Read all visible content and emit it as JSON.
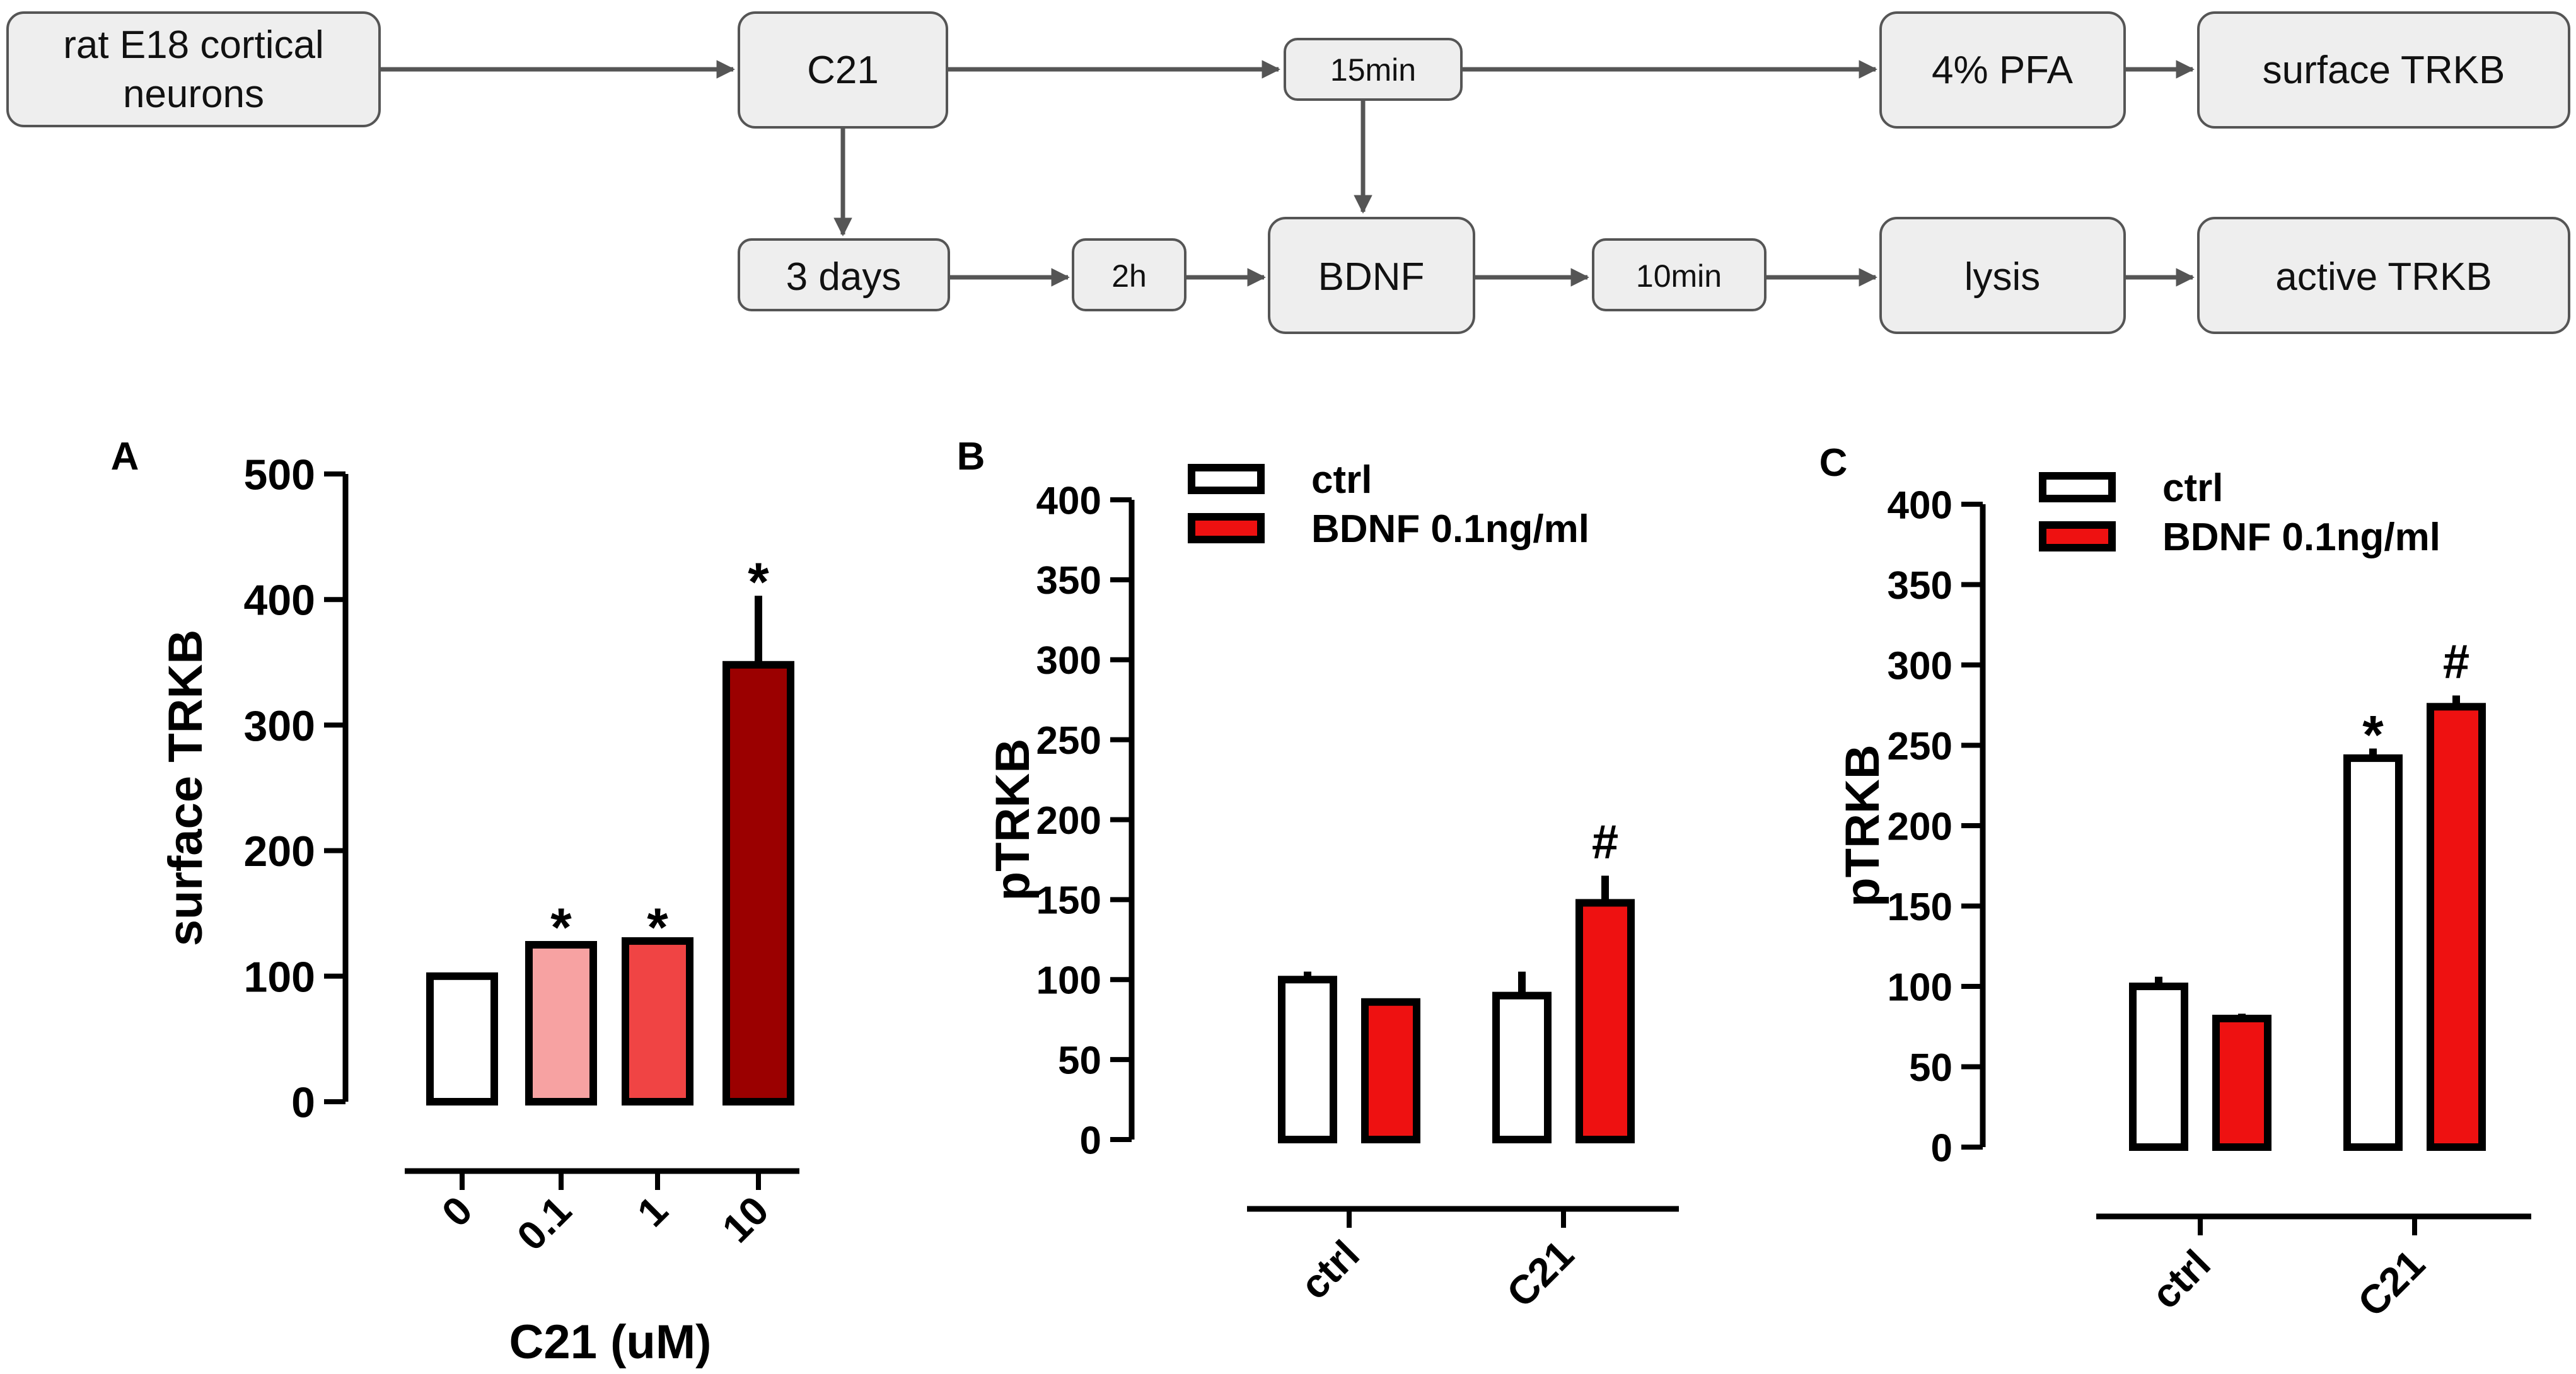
{
  "flow": {
    "nodes": {
      "rat": [
        "rat E18 cortical",
        "neurons"
      ],
      "c21": "C21",
      "t15": "15min",
      "pfa": "4% PFA",
      "surface": "surface TRKB",
      "days": "3 days",
      "t2h": "2h",
      "bdnf": "BDNF",
      "t10": "10min",
      "lysis": "lysis",
      "active": "active TRKB"
    }
  },
  "colors": {
    "white": "#ffffff",
    "red": "#ee1111",
    "pink": "#f7a2a2",
    "lightred": "#f04444",
    "darkred": "#9b0000",
    "node_fill": "#eeeeee",
    "arrow": "#555555"
  },
  "chart_data": [
    {
      "panel": "A",
      "type": "bar",
      "ylabel": "surface TRKB",
      "xlabel": "C21 (uM)",
      "ylim": [
        0,
        500
      ],
      "yticks": [
        "0",
        "100",
        "200",
        "300",
        "400",
        "500"
      ],
      "categories": [
        "0",
        "0.1",
        "1",
        "10"
      ],
      "values": [
        100,
        125,
        128,
        348
      ],
      "errors": [
        0,
        3,
        0,
        55
      ],
      "marks": [
        "",
        "*",
        "*",
        "*"
      ]
    },
    {
      "panel": "B",
      "type": "bar",
      "ylabel": "pTRKB",
      "ylim": [
        0,
        400
      ],
      "yticks": [
        "0",
        "50",
        "100",
        "150",
        "200",
        "250",
        "300",
        "350",
        "400"
      ],
      "categories": [
        "ctrl",
        "C21"
      ],
      "legend": [
        "ctrl",
        "BDNF 0.1ng/ml"
      ],
      "series": [
        {
          "name": "ctrl",
          "values": [
            100,
            90
          ],
          "errors": [
            5,
            15
          ],
          "marks": [
            "",
            ""
          ]
        },
        {
          "name": "BDNF 0.1ng/ml",
          "values": [
            86,
            148
          ],
          "errors": [
            2,
            17
          ],
          "marks": [
            "",
            "#"
          ]
        }
      ]
    },
    {
      "panel": "C",
      "type": "bar",
      "ylabel": "pTRKB",
      "ylim": [
        0,
        400
      ],
      "yticks": [
        "0",
        "50",
        "100",
        "150",
        "200",
        "250",
        "300",
        "350",
        "400"
      ],
      "categories": [
        "ctrl",
        "C21"
      ],
      "legend": [
        "ctrl",
        "BDNF 0.1ng/ml"
      ],
      "series": [
        {
          "name": "ctrl",
          "values": [
            100,
            242
          ],
          "errors": [
            6,
            6
          ],
          "marks": [
            "",
            "*"
          ]
        },
        {
          "name": "BDNF 0.1ng/ml",
          "values": [
            80,
            274
          ],
          "errors": [
            3,
            7
          ],
          "marks": [
            "",
            "#"
          ]
        }
      ]
    }
  ]
}
